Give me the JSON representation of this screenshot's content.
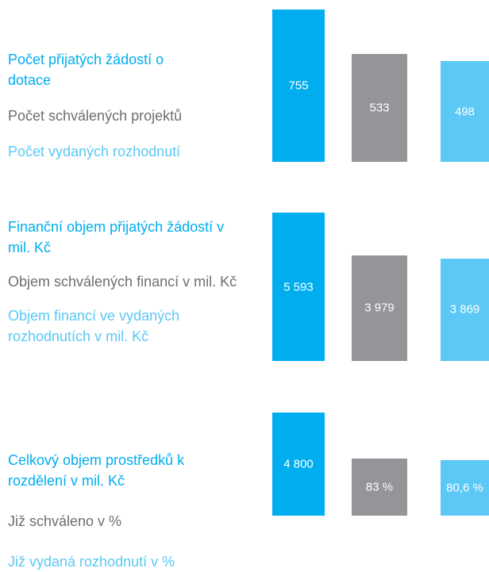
{
  "chart_data": [
    {
      "type": "bar",
      "ylim": [
        0,
        755
      ],
      "series": [
        {
          "name": "Počet přijatých žádostí o dotace",
          "color": "#00aeef",
          "values": [
            755
          ]
        },
        {
          "name": "Počet schválených projektů",
          "color": "#939598",
          "values": [
            533
          ]
        },
        {
          "name": "Počet vydaných rozhodnutí",
          "color": "#5bc8f5",
          "values": [
            498
          ]
        }
      ]
    },
    {
      "type": "bar",
      "ylim": [
        0,
        5593
      ],
      "series": [
        {
          "name": "Finanční objem přijatých žádostí v mil. Kč",
          "color": "#00aeef",
          "values": [
            5593
          ],
          "value_labels": [
            "5 593"
          ]
        },
        {
          "name": "Objem schválených financí v mil. Kč",
          "color": "#939598",
          "values": [
            3979
          ],
          "value_labels": [
            "3 979"
          ]
        },
        {
          "name": "Objem financí ve vydaných rozhodnutích v mil. Kč",
          "color": "#5bc8f5",
          "values": [
            3869
          ],
          "value_labels": [
            "3 869"
          ]
        }
      ]
    },
    {
      "type": "bar",
      "ylim": [
        0,
        4800
      ],
      "y2lim": [
        0,
        150
      ],
      "series": [
        {
          "name": "Celkový objem prostředků k rozdělení v mil. Kč",
          "color": "#00aeef",
          "values": [
            4800
          ],
          "value_labels": [
            "4 800"
          ]
        },
        {
          "name": "Již schváleno v %",
          "color": "#939598",
          "axis": "y2",
          "values": [
            83
          ],
          "value_labels": [
            "83 %"
          ]
        },
        {
          "name": "Již vydaná rozhodnutí v %",
          "color": "#5bc8f5",
          "axis": "y2",
          "values": [
            80.6
          ],
          "value_labels": [
            "80,6 %"
          ]
        }
      ]
    }
  ]
}
